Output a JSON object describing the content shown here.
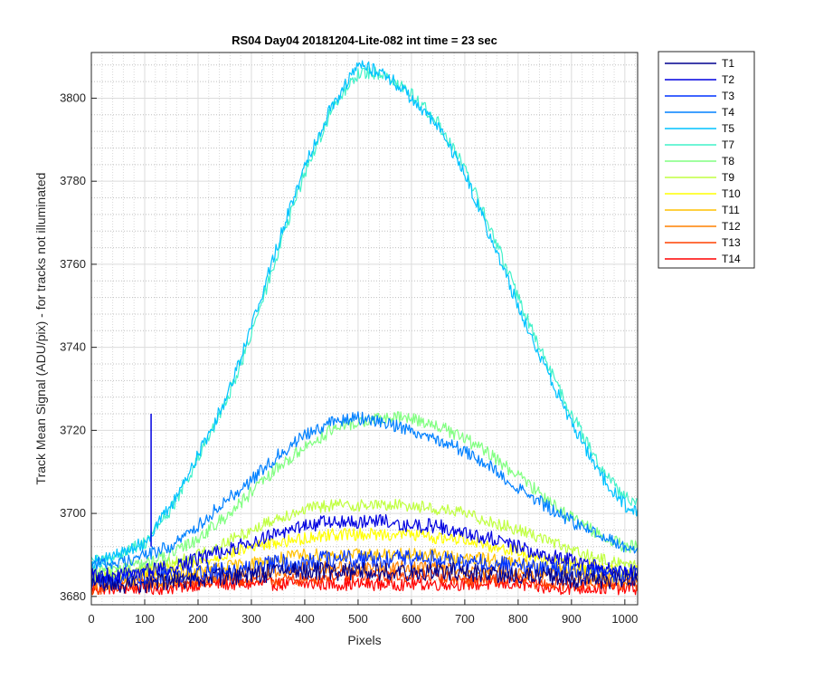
{
  "chart_data": {
    "type": "line",
    "title": "RS04 Day04 20181204-Lite-082 int time = 23 sec",
    "xlabel": "Pixels",
    "ylabel": "Track Mean Signal (ADU/pix) - for tracks not illuminated",
    "xlim": [
      0,
      1024
    ],
    "ylim": [
      3678,
      3811
    ],
    "x_ticks": [
      0,
      100,
      200,
      300,
      400,
      500,
      600,
      700,
      800,
      900,
      1000
    ],
    "y_ticks": [
      3680,
      3700,
      3720,
      3740,
      3760,
      3780,
      3800
    ],
    "grid": "major and minor (dotted)",
    "legend_position": "outside-right-top",
    "x": [
      0,
      50,
      100,
      150,
      200,
      250,
      300,
      350,
      400,
      450,
      500,
      550,
      600,
      650,
      700,
      750,
      800,
      850,
      900,
      950,
      1000,
      1024
    ],
    "series": [
      {
        "name": "T1",
        "color": "#00008f",
        "values": [
          3683,
          3683,
          3683,
          3684,
          3684,
          3685,
          3685,
          3686,
          3686,
          3686,
          3686,
          3686,
          3686,
          3686,
          3686,
          3685,
          3685,
          3685,
          3684,
          3684,
          3684,
          3684
        ]
      },
      {
        "name": "T2",
        "color": "#0000e0",
        "values": [
          3685,
          3685,
          3686,
          3687,
          3689,
          3691,
          3693,
          3695,
          3697,
          3698,
          3698,
          3698,
          3697,
          3697,
          3695,
          3694,
          3692,
          3690,
          3689,
          3687,
          3686,
          3686
        ]
      },
      {
        "name": "T3",
        "color": "#0033ff",
        "values": [
          3684,
          3684,
          3685,
          3685,
          3686,
          3686,
          3687,
          3688,
          3688,
          3689,
          3689,
          3689,
          3689,
          3689,
          3688,
          3688,
          3687,
          3687,
          3686,
          3686,
          3685,
          3685
        ]
      },
      {
        "name": "T4",
        "color": "#0080ff",
        "values": [
          3688,
          3688,
          3690,
          3692,
          3697,
          3703,
          3708,
          3714,
          3719,
          3722,
          3723,
          3722,
          3720,
          3718,
          3715,
          3711,
          3706,
          3702,
          3698,
          3695,
          3692,
          3691
        ]
      },
      {
        "name": "T5",
        "color": "#00c2ff",
        "values": [
          3688,
          3690,
          3693,
          3702,
          3714,
          3727,
          3745,
          3765,
          3784,
          3798,
          3808,
          3806,
          3800,
          3793,
          3782,
          3766,
          3750,
          3735,
          3722,
          3710,
          3702,
          3700
        ]
      },
      {
        "name": "T7",
        "color": "#40f2c9",
        "values": [
          3688,
          3690,
          3693,
          3701,
          3713,
          3726,
          3743,
          3763,
          3782,
          3797,
          3806,
          3806,
          3801,
          3794,
          3783,
          3768,
          3752,
          3737,
          3724,
          3712,
          3704,
          3702
        ]
      },
      {
        "name": "T8",
        "color": "#80ff80",
        "values": [
          3686,
          3687,
          3688,
          3690,
          3694,
          3699,
          3705,
          3711,
          3716,
          3720,
          3722,
          3723,
          3723,
          3721,
          3718,
          3714,
          3709,
          3704,
          3699,
          3695,
          3692,
          3692
        ]
      },
      {
        "name": "T9",
        "color": "#c0ff40",
        "values": [
          3685,
          3686,
          3687,
          3688,
          3690,
          3693,
          3696,
          3699,
          3701,
          3702,
          3702,
          3702,
          3702,
          3701,
          3700,
          3698,
          3696,
          3694,
          3691,
          3689,
          3688,
          3687
        ]
      },
      {
        "name": "T10",
        "color": "#ffff00",
        "values": [
          3685,
          3685,
          3686,
          3687,
          3688,
          3690,
          3692,
          3693,
          3694,
          3695,
          3695,
          3695,
          3695,
          3694,
          3694,
          3692,
          3691,
          3689,
          3688,
          3687,
          3686,
          3686
        ]
      },
      {
        "name": "T11",
        "color": "#ffc000",
        "values": [
          3684,
          3684,
          3685,
          3685,
          3686,
          3687,
          3688,
          3689,
          3690,
          3690,
          3690,
          3690,
          3690,
          3690,
          3689,
          3689,
          3688,
          3687,
          3686,
          3685,
          3685,
          3685
        ]
      },
      {
        "name": "T12",
        "color": "#ff8000",
        "values": [
          3683,
          3683,
          3684,
          3684,
          3685,
          3685,
          3686,
          3686,
          3687,
          3687,
          3687,
          3687,
          3687,
          3687,
          3686,
          3686,
          3686,
          3685,
          3685,
          3684,
          3684,
          3684
        ]
      },
      {
        "name": "T13",
        "color": "#ff4000",
        "values": [
          3682,
          3682,
          3683,
          3683,
          3683,
          3684,
          3684,
          3684,
          3684,
          3685,
          3685,
          3685,
          3685,
          3685,
          3684,
          3684,
          3684,
          3683,
          3683,
          3683,
          3683,
          3683
        ]
      },
      {
        "name": "T14",
        "color": "#ff0000",
        "values": [
          3682,
          3682,
          3682,
          3682,
          3683,
          3683,
          3683,
          3683,
          3683,
          3683,
          3683,
          3683,
          3683,
          3683,
          3683,
          3683,
          3683,
          3682,
          3682,
          3682,
          3682,
          3682
        ]
      }
    ],
    "annotations": [
      {
        "series": "T2",
        "type": "spike",
        "x": 112,
        "y_from": 3692,
        "y_to": 3724
      }
    ]
  }
}
